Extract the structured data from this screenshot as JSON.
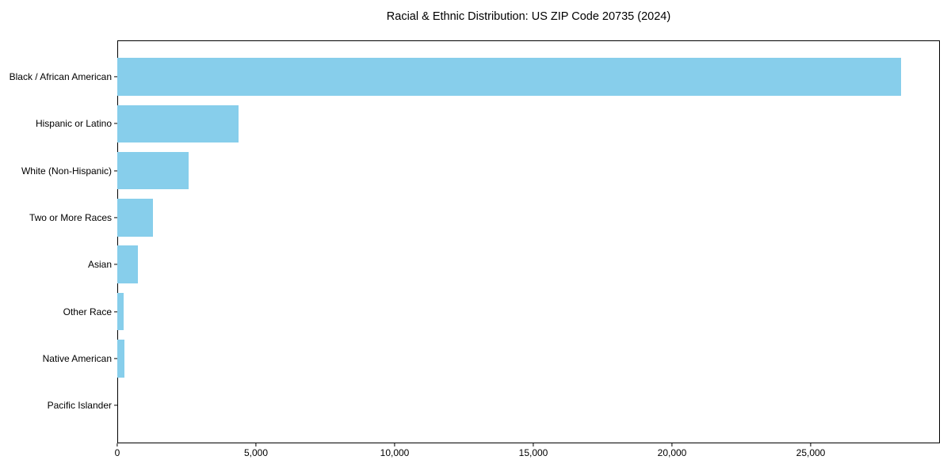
{
  "figure": {
    "background": "#ffffff"
  },
  "chart_data": {
    "type": "bar",
    "orientation": "horizontal",
    "title": "Racial & Ethnic Distribution: US ZIP Code 20735 (2024)",
    "xlabel": "",
    "ylabel": "",
    "categories": [
      "Black / African American",
      "Hispanic or Latino",
      "White (Non-Hispanic)",
      "Two or More Races",
      "Asian",
      "Other Race",
      "Native American",
      "Pacific Islander"
    ],
    "values": [
      28260,
      4370,
      2570,
      1290,
      740,
      230,
      250,
      0
    ],
    "bar_color": "#87CEEB",
    "xlim": [
      0,
      29657
    ],
    "xticks": [
      {
        "value": 0,
        "label": "0"
      },
      {
        "value": 5000,
        "label": "5,000"
      },
      {
        "value": 10000,
        "label": "10,000"
      },
      {
        "value": 15000,
        "label": "15,000"
      },
      {
        "value": 20000,
        "label": "20,000"
      },
      {
        "value": 25000,
        "label": "25,000"
      }
    ],
    "grid": false,
    "legend": null,
    "text_color": "#000000",
    "axis_color": "#000000"
  }
}
